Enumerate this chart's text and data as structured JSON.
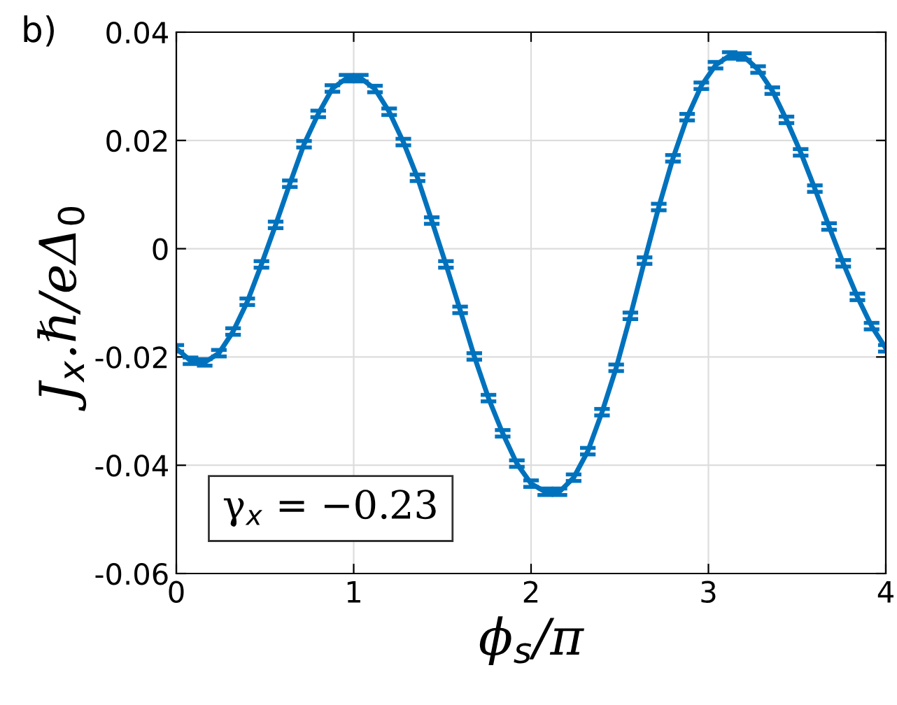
{
  "chart_data": {
    "type": "line",
    "xlabel": "ϕ$_{s}$/π",
    "ylabel": "J$_{x}$.ℏ/eΔ$_{0}$",
    "annotations": [
      "b)",
      "γ$_{x}$ = −0.23"
    ],
    "x": [
      0,
      0.08,
      0.16,
      0.24,
      0.32,
      0.4,
      0.48,
      0.56,
      0.64,
      0.72,
      0.8,
      0.88,
      0.96,
      1.04,
      1.12,
      1.2,
      1.28,
      1.36,
      1.44,
      1.52,
      1.6,
      1.68,
      1.76,
      1.84,
      1.92,
      2.0,
      2.08,
      2.16,
      2.24,
      2.32,
      2.4,
      2.48,
      2.56,
      2.64,
      2.72,
      2.8,
      2.88,
      2.96,
      3.04,
      3.12,
      3.2,
      3.28,
      3.36,
      3.44,
      3.52,
      3.6,
      3.68,
      3.76,
      3.84,
      3.92,
      4.0
    ],
    "series": [
      {
        "color": "#0072bd",
        "values": [
          -0.0184,
          -0.0207,
          -0.021,
          -0.0193,
          -0.0153,
          -0.0098,
          -0.0029,
          0.0044,
          0.012,
          0.0193,
          0.0249,
          0.0296,
          0.0315,
          0.0315,
          0.0295,
          0.0253,
          0.0197,
          0.0131,
          0.0052,
          -0.0029,
          -0.0113,
          -0.0199,
          -0.0276,
          -0.0341,
          -0.0397,
          -0.0434,
          -0.0449,
          -0.0449,
          -0.0423,
          -0.0374,
          -0.0302,
          -0.022,
          -0.0124,
          -0.0022,
          0.0077,
          0.0167,
          0.0243,
          0.0301,
          0.0339,
          0.0357,
          0.0355,
          0.0331,
          0.0292,
          0.0238,
          0.0178,
          0.0111,
          0.0041,
          -0.0027,
          -0.0089,
          -0.0143,
          -0.0184
        ],
        "errors": [
          0.0006,
          0.0006,
          0.0006,
          0.0006,
          0.0006,
          0.0006,
          0.0006,
          0.0006,
          0.0006,
          0.0006,
          0.0006,
          0.0006,
          0.0006,
          0.0006,
          0.0006,
          0.0006,
          0.0006,
          0.0006,
          0.0006,
          0.0006,
          0.0006,
          0.0006,
          0.0006,
          0.0006,
          0.0006,
          0.0006,
          0.0006,
          0.0006,
          0.0006,
          0.0006,
          0.0006,
          0.0006,
          0.0006,
          0.0006,
          0.0006,
          0.0006,
          0.0006,
          0.0006,
          0.0006,
          0.0006,
          0.0006,
          0.0006,
          0.0006,
          0.0006,
          0.0006,
          0.0006,
          0.0006,
          0.0006,
          0.0006,
          0.0006,
          0.0006
        ]
      }
    ],
    "xlim": [
      0,
      4
    ],
    "xticks": [
      0,
      1,
      2,
      3,
      4
    ],
    "ylim": [
      -0.06,
      0.04
    ],
    "yticks": [
      {
        "value": -0.06,
        "label": "-0.06"
      },
      {
        "value": -0.04,
        "label": "-0.04"
      },
      {
        "value": -0.02,
        "label": "-0.02"
      },
      0,
      0.02,
      0.04
    ],
    "grid": true,
    "line_style": "solid",
    "marker": "none"
  }
}
